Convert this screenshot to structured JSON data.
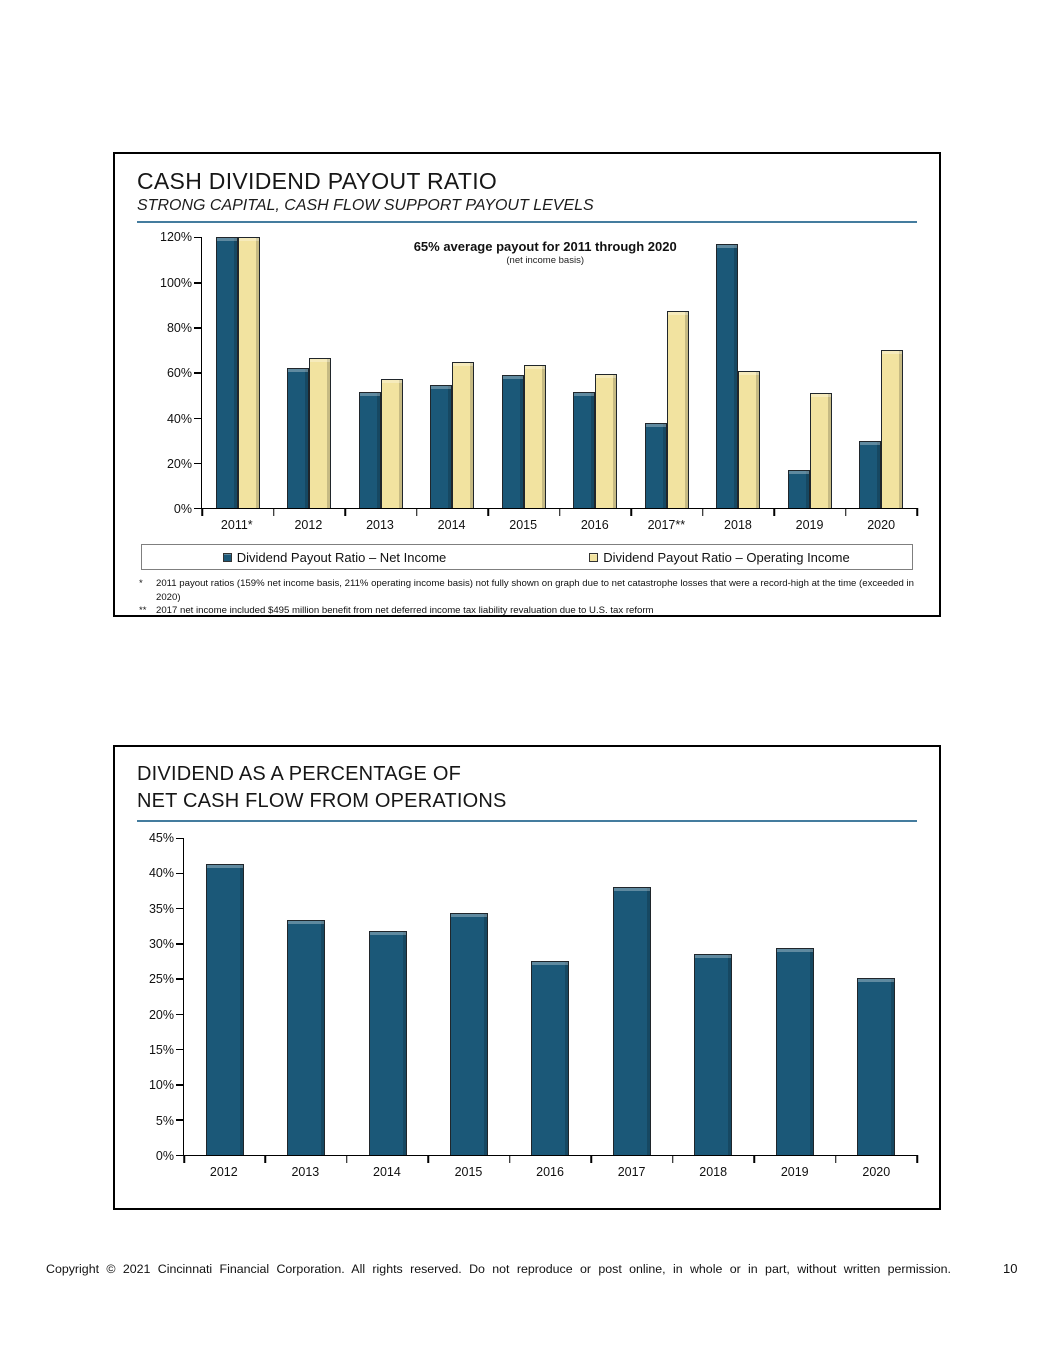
{
  "page": {
    "footer_text": "Copyright © 2021 Cincinnati Financial Corporation. All rights reserved. Do not reproduce or post online, in whole or in part, without written permission.",
    "page_number": "10"
  },
  "colors": {
    "net_income_bar": "#1B5878",
    "operating_income_bar": "#F2E3A0",
    "title_rule": "#447C9E"
  },
  "chart_data": [
    {
      "type": "bar",
      "title": "CASH DIVIDEND PAYOUT RATIO",
      "subtitle": "STRONG CAPITAL, CASH FLOW SUPPORT PAYOUT LEVELS",
      "annotation": {
        "line1": "65% average payout for 2011 through 2020",
        "line2": "(net income basis)"
      },
      "categories": [
        "2011*",
        "2012",
        "2013",
        "2014",
        "2015",
        "2016",
        "2017**",
        "2018",
        "2019",
        "2020"
      ],
      "series": [
        {
          "name": "Dividend Payout Ratio – Net Income",
          "color": "#1B5878",
          "values": [
            159,
            62,
            51.5,
            54.5,
            59,
            51.5,
            38,
            117,
            17,
            30
          ]
        },
        {
          "name": "Dividend Payout Ratio – Operating Income",
          "color": "#F2E3A0",
          "values": [
            211,
            66.5,
            57.5,
            65,
            63.5,
            59.5,
            87.5,
            61,
            51,
            70
          ]
        }
      ],
      "ylim": [
        0,
        120
      ],
      "yticks": [
        0,
        20,
        40,
        60,
        80,
        100,
        120
      ],
      "grid": false,
      "legend_position": "bottom",
      "footnotes": [
        {
          "marker": "*",
          "text": "2011 payout ratios (159% net income basis, 211% operating income basis) not fully shown on graph due to net catastrophe losses that were a record-high at the time (exceeded in 2020)"
        },
        {
          "marker": "**",
          "text": "2017 net income included $495 million benefit from net deferred income tax liability revaluation due to U.S. tax reform"
        }
      ]
    },
    {
      "type": "bar",
      "title_line1": "DIVIDEND AS A PERCENTAGE OF",
      "title_line2": "NET CASH FLOW FROM OPERATIONS",
      "categories": [
        "2012",
        "2013",
        "2014",
        "2015",
        "2016",
        "2017",
        "2018",
        "2019",
        "2020"
      ],
      "series": [
        {
          "color": "#1B5878",
          "values": [
            41.3,
            33.4,
            31.8,
            34.4,
            27.6,
            38.0,
            28.5,
            29.4,
            25.1
          ]
        }
      ],
      "ylim": [
        0,
        45
      ],
      "yticks": [
        0,
        5,
        10,
        15,
        20,
        25,
        30,
        35,
        40,
        45
      ],
      "grid": false,
      "legend_position": "none"
    }
  ]
}
